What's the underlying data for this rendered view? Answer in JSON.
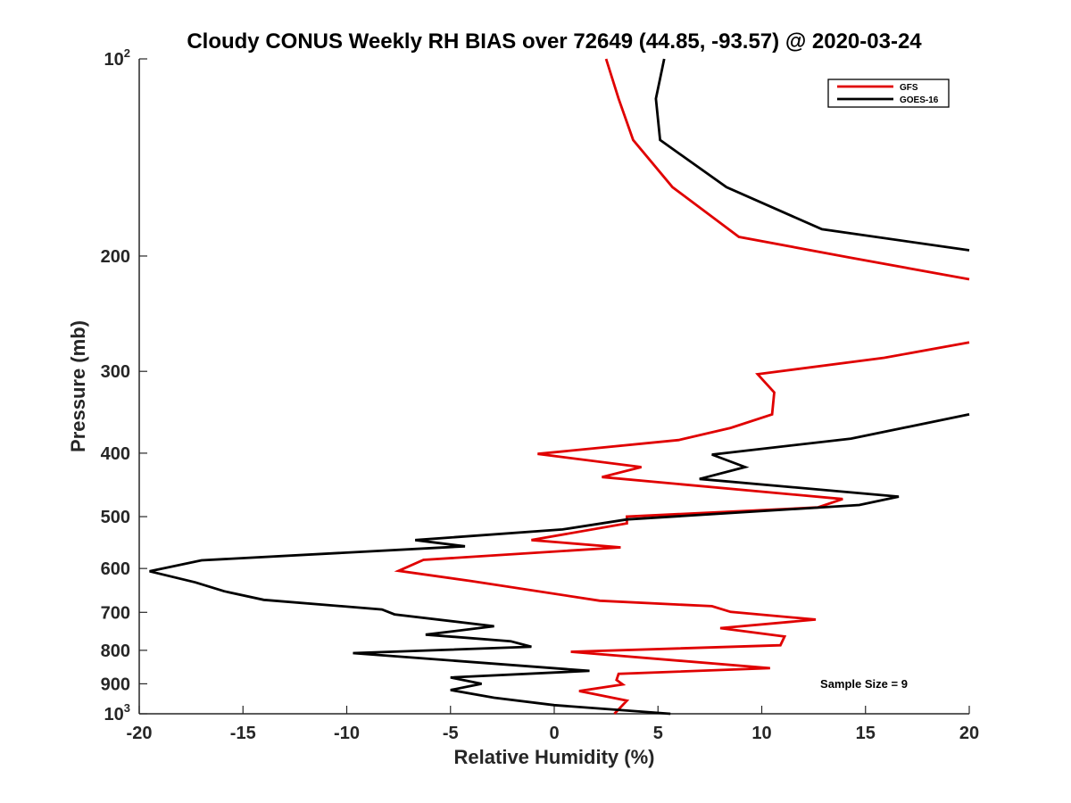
{
  "chart_data": {
    "type": "line",
    "title": "Cloudy CONUS Weekly RH BIAS over 72649 (44.85, -93.57) @ 2020-03-24",
    "xlabel": "Relative Humidity (%)",
    "ylabel": "Pressure (mb)",
    "xlim": [
      -20,
      20
    ],
    "ylim": [
      100,
      1000
    ],
    "y_scale": "log",
    "y_reversed": true,
    "grid": false,
    "legend_position": "top-right",
    "x_ticks": [
      "-20",
      "-15",
      "-10",
      "-5",
      "0",
      "5",
      "10",
      "15",
      "20"
    ],
    "y_ticks": [
      {
        "value": 100,
        "base": "10",
        "exp": "2"
      },
      {
        "value": 200,
        "label": "200"
      },
      {
        "value": 300,
        "label": "300"
      },
      {
        "value": 400,
        "label": "400"
      },
      {
        "value": 500,
        "label": "500"
      },
      {
        "value": 600,
        "label": "600"
      },
      {
        "value": 700,
        "label": "700"
      },
      {
        "value": 800,
        "label": "800"
      },
      {
        "value": 900,
        "label": "900"
      },
      {
        "value": 1000,
        "base": "10",
        "exp": "3"
      }
    ],
    "series": [
      {
        "name": "GFS",
        "color": "#e00000",
        "points": [
          [
            2.5,
            100
          ],
          [
            3.1,
            115
          ],
          [
            3.8,
            133
          ],
          [
            5.7,
            157
          ],
          [
            8.9,
            187
          ],
          [
            14.2,
            201
          ],
          [
            20.0,
            217
          ],
          [
            null,
            null
          ],
          [
            20.0,
            271
          ],
          [
            15.9,
            286
          ],
          [
            9.8,
            303
          ],
          [
            10.6,
            323
          ],
          [
            10.5,
            349
          ],
          [
            8.5,
            366
          ],
          [
            6.0,
            382
          ],
          [
            -0.8,
            401
          ],
          [
            4.2,
            420
          ],
          [
            2.3,
            435
          ],
          [
            13.9,
            470
          ],
          [
            12.7,
            484
          ],
          [
            3.5,
            500
          ],
          [
            3.5,
            512
          ],
          [
            -1.1,
            543
          ],
          [
            3.2,
            557
          ],
          [
            -6.3,
            582
          ],
          [
            -7.5,
            605
          ],
          [
            -4.0,
            627
          ],
          [
            2.2,
            672
          ],
          [
            7.6,
            685
          ],
          [
            8.5,
            699
          ],
          [
            12.6,
            718
          ],
          [
            8.0,
            740
          ],
          [
            11.1,
            762
          ],
          [
            10.9,
            786
          ],
          [
            0.8,
            804
          ],
          [
            10.4,
            852
          ],
          [
            3.1,
            869
          ],
          [
            3.0,
            888
          ],
          [
            3.3,
            902
          ],
          [
            1.2,
            923
          ],
          [
            3.5,
            955
          ],
          [
            2.9,
            1000
          ]
        ]
      },
      {
        "name": "GOES-16",
        "color": "#000000",
        "points": [
          [
            5.3,
            100
          ],
          [
            4.9,
            115
          ],
          [
            5.1,
            133
          ],
          [
            8.3,
            157
          ],
          [
            12.9,
            182
          ],
          [
            20.0,
            196
          ],
          [
            null,
            null
          ],
          [
            20.0,
            349
          ],
          [
            14.3,
            380
          ],
          [
            7.6,
            402
          ],
          [
            9.2,
            420
          ],
          [
            7.0,
            438
          ],
          [
            16.6,
            466
          ],
          [
            14.7,
            480
          ],
          [
            3.5,
            505
          ],
          [
            0.4,
            523
          ],
          [
            -6.7,
            543
          ],
          [
            -4.3,
            555
          ],
          [
            -17.0,
            583
          ],
          [
            -19.5,
            606
          ],
          [
            -17.3,
            630
          ],
          [
            -15.9,
            650
          ],
          [
            -14.0,
            670
          ],
          [
            -8.3,
            693
          ],
          [
            -7.7,
            705
          ],
          [
            -2.9,
            735
          ],
          [
            -6.2,
            757
          ],
          [
            -2.1,
            775
          ],
          [
            -1.1,
            790
          ],
          [
            -9.7,
            808
          ],
          [
            1.7,
            860
          ],
          [
            -5.0,
            880
          ],
          [
            -3.5,
            900
          ],
          [
            -5.0,
            920
          ],
          [
            -2.9,
            945
          ],
          [
            0.0,
            970
          ],
          [
            5.6,
            1000
          ]
        ]
      }
    ],
    "annotation": "Sample Size = 9"
  }
}
